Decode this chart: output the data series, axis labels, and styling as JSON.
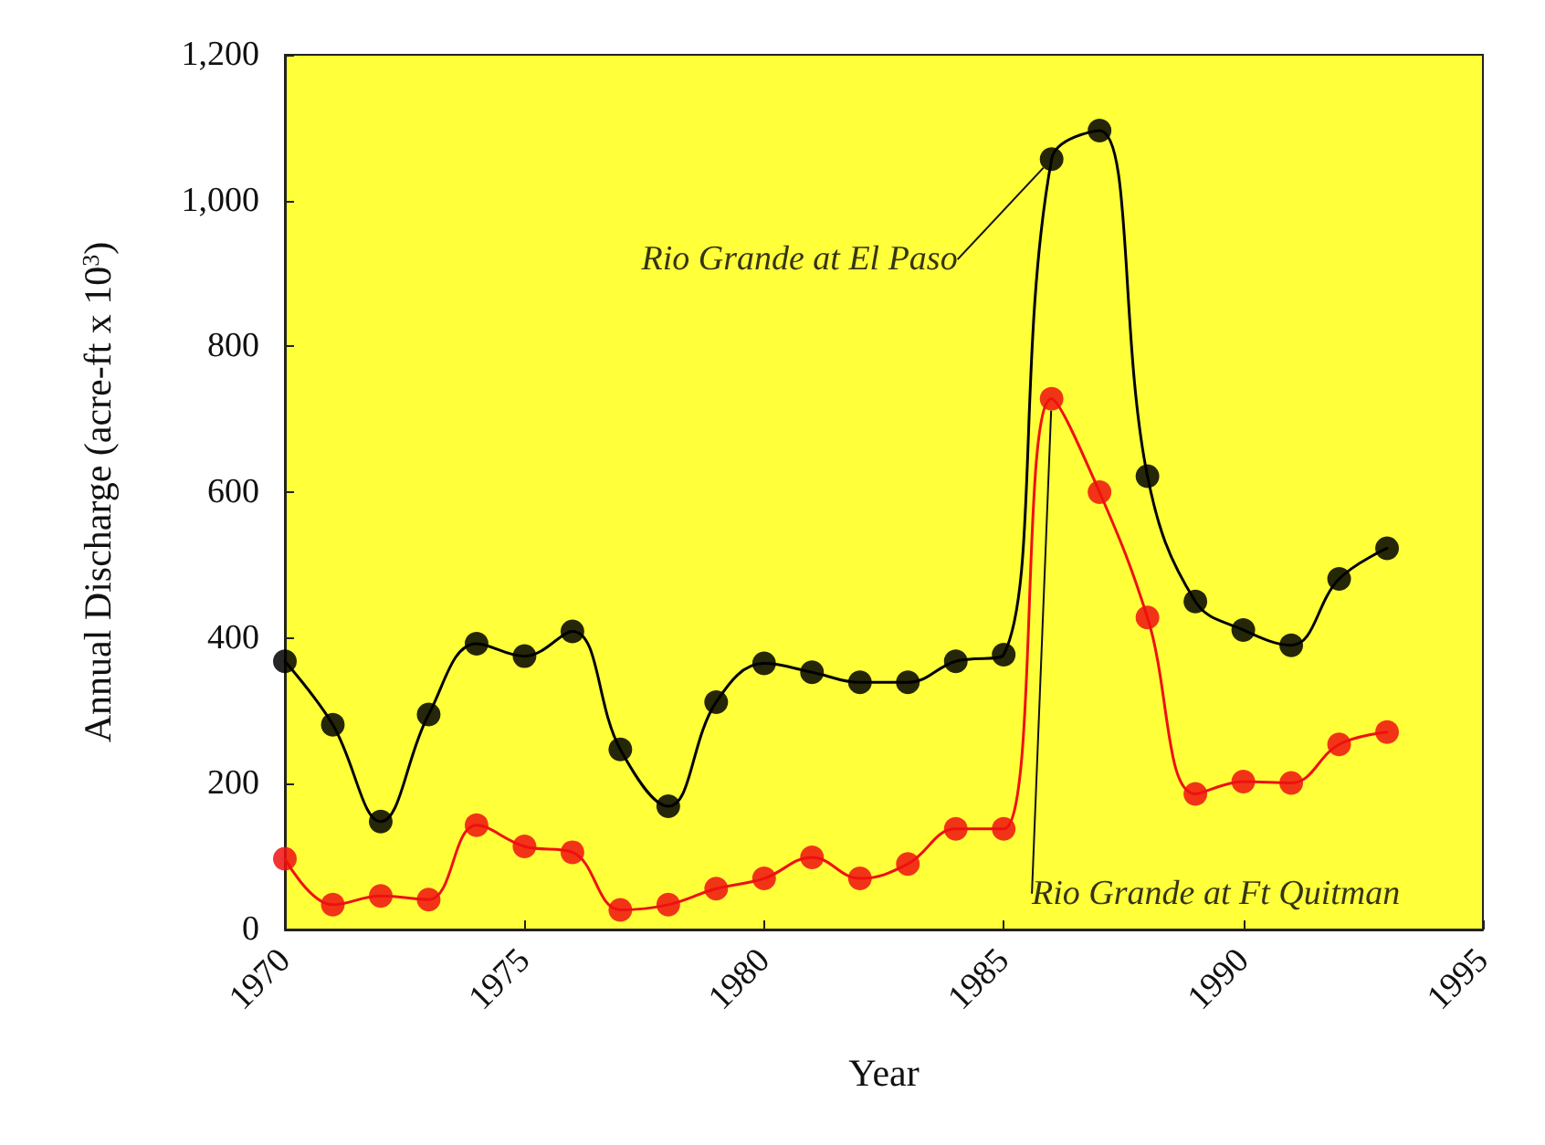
{
  "chart_data": {
    "type": "line",
    "xlabel": "Year",
    "ylabel": "Annual Discharge (acre-ft x 10$^{3}$)",
    "x": [
      1970,
      1971,
      1972,
      1973,
      1974,
      1975,
      1976,
      1977,
      1978,
      1979,
      1980,
      1981,
      1982,
      1983,
      1984,
      1985,
      1986,
      1987,
      1988,
      1989,
      1990,
      1991,
      1992,
      1993
    ],
    "series": [
      {
        "name": "Rio Grande at El Paso",
        "color": "#000000",
        "values": [
          368,
          281,
          148,
          295,
          392,
          375,
          409,
          247,
          169,
          312,
          365,
          353,
          339,
          339,
          368,
          377,
          1057,
          1096,
          622,
          450,
          411,
          390,
          481,
          523
        ]
      },
      {
        "name": "Rio Grande at Ft Quitman",
        "color": "#ee1111",
        "values": [
          97,
          34,
          46,
          41,
          143,
          114,
          106,
          27,
          34,
          56,
          70,
          99,
          70,
          90,
          138,
          138,
          728,
          600,
          428,
          186,
          203,
          201,
          254,
          271
        ]
      }
    ],
    "xlim": [
      1970,
      1995
    ],
    "xticks": [
      1970,
      1975,
      1980,
      1985,
      1990,
      1995
    ],
    "ylim": [
      0,
      1200
    ],
    "yticks": [
      0,
      {
        "value": 200,
        "label": "200"
      },
      {
        "value": 400,
        "label": "400"
      },
      {
        "value": 600,
        "label": "600"
      },
      {
        "value": 800,
        "label": "800"
      },
      {
        "value": 1000,
        "label": "1,000"
      },
      {
        "value": 1200,
        "label": "1,200"
      }
    ],
    "grid": false,
    "legend": false,
    "marker": "circle",
    "line_style": "solid"
  }
}
